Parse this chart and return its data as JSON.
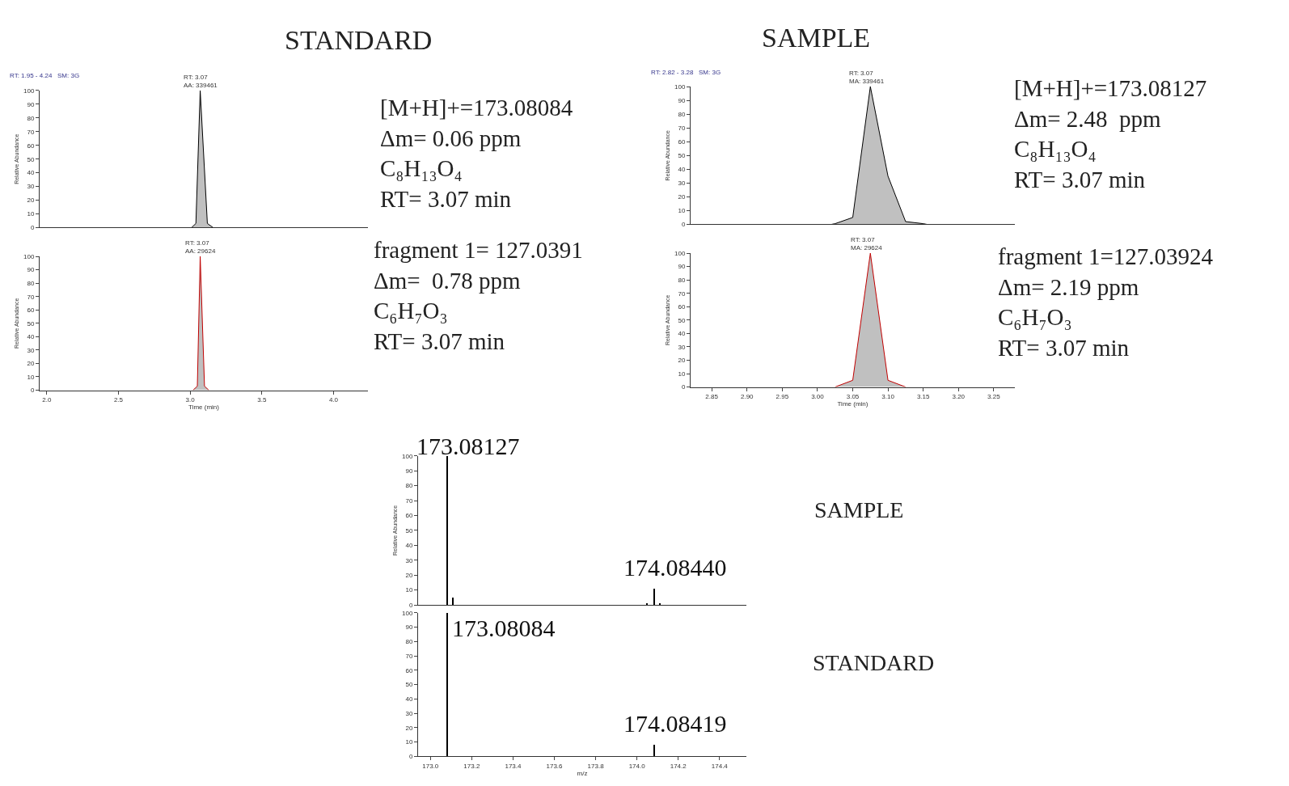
{
  "chart_data": [
    {
      "type": "area",
      "title": "STANDARD",
      "ylabel": "Relative Abundance",
      "x": [
        3.01,
        3.04,
        3.07,
        3.12,
        3.16
      ],
      "series": [
        {
          "color": "#000000",
          "values": [
            0,
            3,
            100,
            3,
            0
          ]
        }
      ],
      "xlim": [
        1.95,
        4.24
      ],
      "ylim": [
        0,
        100
      ],
      "yticks": [
        0,
        10,
        20,
        30,
        40,
        50,
        60,
        70,
        80,
        90,
        100
      ],
      "tick_labels": "y",
      "annotations": [
        "RT: 1.95 - 4.24   SM: 3G",
        "[M+H]+=173.08084\nΔm= 0.06 ppm\nC₈H₁₃O₄\nRT= 3.07 min",
        {
          "text": "RT: 3.07\nAA: 339461",
          "x": 3.07,
          "y": 100
        }
      ]
    },
    {
      "type": "area",
      "xlabel": "Time (min)",
      "ylabel": "Relative Abundance",
      "x": [
        3.02,
        3.05,
        3.07,
        3.1,
        3.13
      ],
      "series": [
        {
          "color": "#c00000",
          "values": [
            0,
            3,
            100,
            3,
            0
          ]
        }
      ],
      "xlim": [
        1.95,
        4.24
      ],
      "xticks": [
        {
          "value": 2,
          "label": "2.0"
        },
        2.5,
        {
          "value": 3,
          "label": "3.0"
        },
        3.5,
        {
          "value": 4,
          "label": "4.0"
        }
      ],
      "ylim": [
        0,
        100
      ],
      "yticks": [
        0,
        10,
        20,
        30,
        40,
        50,
        60,
        70,
        80,
        90,
        100
      ],
      "annotations": [
        "fragment 1= 127.0391\nΔm=  0.78 ppm\nC₆H₇O₃\nRT= 3.07 min",
        {
          "text": "RT: 3.07\nAA: 29624",
          "x": 3.07,
          "y": 100
        }
      ]
    },
    {
      "type": "area",
      "title": "SAMPLE",
      "ylabel": "Relative Abundance",
      "x": [
        3.02,
        3.025,
        3.05,
        3.075,
        3.1,
        3.125,
        3.15,
        3.155
      ],
      "series": [
        {
          "color": "#000000",
          "values": [
            0,
            0.5,
            5,
            100,
            35,
            2,
            0.5,
            0
          ]
        }
      ],
      "xlim": [
        2.82,
        3.28
      ],
      "ylim": [
        0,
        100
      ],
      "yticks": [
        0,
        10,
        20,
        30,
        40,
        50,
        60,
        70,
        80,
        90,
        100
      ],
      "tick_labels": "y",
      "annotations": [
        "RT: 2.82 - 3.28   SM: 3G",
        "[M+H]+=173.08127\nΔm= 2.48  ppm\nC₈H₁₃O₄\nRT= 3.07 min",
        {
          "text": "RT: 3.07\nMA: 339461",
          "x": 3.07,
          "y": 100
        }
      ]
    },
    {
      "type": "area",
      "xlabel": "Time (min)",
      "ylabel": "Relative Abundance",
      "x": [
        3.025,
        3.05,
        3.075,
        3.1,
        3.125
      ],
      "series": [
        {
          "color": "#c00000",
          "values": [
            0,
            5,
            100,
            5,
            0
          ]
        }
      ],
      "xlim": [
        2.82,
        3.28
      ],
      "xticks": [
        2.85,
        {
          "value": 2.9,
          "label": "2.90"
        },
        2.95,
        {
          "value": 3,
          "label": "3.00"
        },
        3.05,
        {
          "value": 3.1,
          "label": "3.10"
        },
        3.15,
        {
          "value": 3.2,
          "label": "3.20"
        },
        3.25
      ],
      "ylim": [
        0,
        100
      ],
      "yticks": [
        0,
        10,
        20,
        30,
        40,
        50,
        60,
        70,
        80,
        90,
        100
      ],
      "annotations": [
        "fragment 1=127.03924\nΔm= 2.19 ppm\nC₆H₇O₃\nRT= 3.07 min",
        {
          "text": "RT: 3.07\nMA: 29624",
          "x": 3.07,
          "y": 100
        }
      ]
    },
    {
      "type": "bar",
      "ylabel": "Relative Abundance",
      "x": [
        173.08,
        173.11,
        174.05,
        174.084,
        174.11
      ],
      "series": [
        {
          "color": "#000000",
          "values": [
            100,
            5,
            1,
            11,
            1.5
          ]
        }
      ],
      "xlim": [
        172.94,
        174.53
      ],
      "ylim": [
        0,
        100
      ],
      "yticks": [
        0,
        10,
        20,
        30,
        40,
        50,
        60,
        70,
        80,
        90,
        100
      ],
      "tick_labels": "y",
      "annotations": [
        "SAMPLE",
        {
          "text": "173.08127",
          "x": 173.08,
          "y": 100
        },
        {
          "text": "174.08440",
          "x": 174.084,
          "y": 11
        }
      ]
    },
    {
      "type": "bar",
      "xlabel": "m/z",
      "x": [
        173.08,
        174.084
      ],
      "series": [
        {
          "color": "#000000",
          "values": [
            100,
            8
          ]
        }
      ],
      "xlim": [
        172.94,
        174.53
      ],
      "xticks": [
        {
          "value": 173,
          "label": "173.0"
        },
        173.2,
        173.4,
        173.6,
        173.8,
        {
          "value": 174,
          "label": "174.0"
        },
        174.2,
        174.4
      ],
      "ylim": [
        0,
        100
      ],
      "yticks": [
        0,
        10,
        20,
        30,
        40,
        50,
        60,
        70,
        80,
        90,
        100
      ],
      "annotations": [
        "STANDARD",
        {
          "text": "173.08084",
          "x": 173.08,
          "y": 100
        },
        {
          "text": "174.08419",
          "x": 174.084,
          "y": 8
        }
      ]
    }
  ]
}
